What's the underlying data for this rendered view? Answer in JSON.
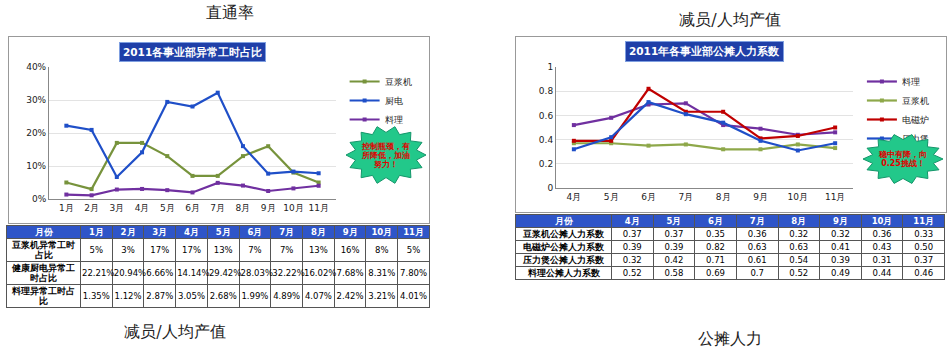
{
  "headings": {
    "left_top": "直通率",
    "right_top": "减员/人均产值",
    "left_bottom": "减员/人均产值",
    "right_bottom": "公摊人力"
  },
  "chart_data": [
    {
      "type": "line",
      "title": "2011各事业部异常工时占比",
      "categories": [
        "1月",
        "2月",
        "3月",
        "4月",
        "5月",
        "6月",
        "7月",
        "8月",
        "9月",
        "10月",
        "11月"
      ],
      "series": [
        {
          "name": "豆浆机",
          "color": "#77933C",
          "values": [
            5,
            3,
            17,
            17,
            13,
            7,
            7,
            13,
            16,
            8,
            5
          ]
        },
        {
          "name": "厨电",
          "color": "#1F4FC8",
          "values": [
            22.21,
            20.94,
            6.66,
            14.14,
            29.42,
            28.03,
            32.22,
            16.02,
            7.68,
            8.31,
            7.8
          ]
        },
        {
          "name": "料理",
          "color": "#7030A0",
          "values": [
            1.35,
            1.12,
            2.87,
            3.05,
            2.68,
            1.99,
            4.89,
            4.07,
            2.42,
            3.21,
            4.01
          ]
        }
      ],
      "ylim": [
        0,
        40
      ],
      "yticks": [
        {
          "value": 0,
          "label": "0%"
        },
        {
          "value": 10,
          "label": "10%"
        },
        {
          "value": 20,
          "label": "20%"
        },
        {
          "value": 30,
          "label": "30%"
        },
        {
          "value": 40,
          "label": "40%"
        }
      ],
      "grid": true,
      "legend": "right",
      "marker": "square",
      "annotations": [
        {
          "text": "控制瓶颈，有所降低，加油努力！"
        }
      ]
    },
    {
      "type": "line",
      "title": "2011年各事业部公摊人力系数",
      "categories": [
        "4月",
        "5月",
        "6月",
        "7月",
        "8月",
        "9月",
        "10月",
        "11月"
      ],
      "series": [
        {
          "name": "料理",
          "color": "#7030A0",
          "values": [
            0.52,
            0.58,
            0.69,
            0.7,
            0.52,
            0.49,
            0.44,
            0.46
          ]
        },
        {
          "name": "豆浆机",
          "color": "#8EA84A",
          "values": [
            0.37,
            0.37,
            0.35,
            0.36,
            0.32,
            0.32,
            0.36,
            0.33
          ]
        },
        {
          "name": "电磁炉",
          "color": "#C00000",
          "values": [
            0.39,
            0.39,
            0.82,
            0.63,
            0.63,
            0.41,
            0.43,
            0.5
          ]
        },
        {
          "name": "压力煲",
          "color": "#1F4FC8",
          "values": [
            0.32,
            0.42,
            0.71,
            0.61,
            0.54,
            0.39,
            0.31,
            0.37
          ]
        }
      ],
      "ylim": [
        0,
        1
      ],
      "yticks": [
        0,
        0.2,
        0.4,
        0.6,
        0.8,
        1
      ],
      "grid": true,
      "legend": "right",
      "marker": "square",
      "annotations": [
        {
          "text": "稳中有降，向0.25挑战！"
        }
      ]
    }
  ],
  "tables": [
    {
      "header": [
        "月份",
        "1月",
        "2月",
        "3月",
        "4月",
        "5月",
        "6月",
        "7月",
        "8月",
        "9月",
        "10月",
        "11月"
      ],
      "rows": [
        [
          "豆浆机异常工时占比",
          "5%",
          "3%",
          "17%",
          "17%",
          "13%",
          "7%",
          "7%",
          "13%",
          "16%",
          "8%",
          "5%"
        ],
        [
          "健康厨电异常工时占比",
          "22.21%",
          "20.94%",
          "6.66%",
          "14.14%",
          "29.42%",
          "28.03%",
          "32.22%",
          "16.02%",
          "7.68%",
          "8.31%",
          "7.80%"
        ],
        [
          "料理异常工时占比",
          "1.35%",
          "1.12%",
          "2.87%",
          "3.05%",
          "2.68%",
          "1.99%",
          "4.89%",
          "4.07%",
          "2.42%",
          "3.21%",
          "4.01%"
        ]
      ]
    },
    {
      "header": [
        "月份",
        "4月",
        "5月",
        "6月",
        "7月",
        "8月",
        "9月",
        "10月",
        "11月"
      ],
      "rows": [
        [
          "豆浆机公摊人力系数",
          "0.37",
          "0.37",
          "0.35",
          "0.36",
          "0.32",
          "0.32",
          "0.36",
          "0.33"
        ],
        [
          "电磁炉公摊人力系数",
          "0.39",
          "0.39",
          "0.82",
          "0.63",
          "0.63",
          "0.41",
          "0.43",
          "0.50"
        ],
        [
          "压力煲公摊人力系数",
          "0.32",
          "0.42",
          "0.71",
          "0.61",
          "0.54",
          "0.39",
          "0.31",
          "0.37"
        ],
        [
          "料理公摊人力系数",
          "0.52",
          "0.58",
          "0.69",
          "0.7",
          "0.52",
          "0.49",
          "0.44",
          "0.46"
        ]
      ]
    }
  ]
}
